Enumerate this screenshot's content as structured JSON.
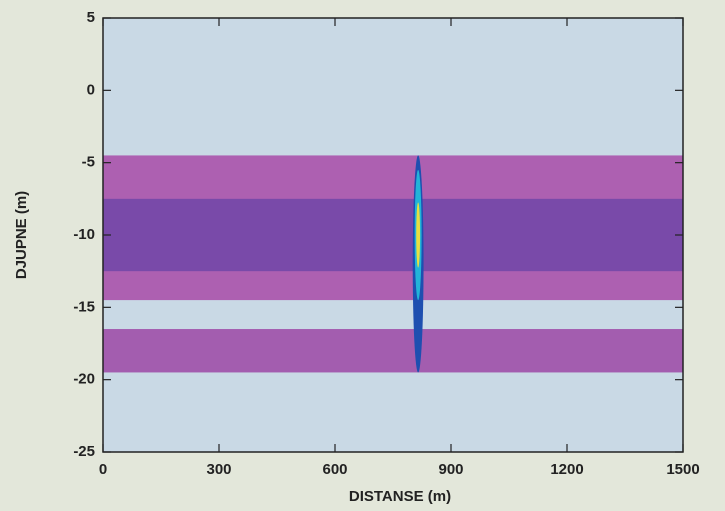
{
  "chart_data": {
    "type": "echogram",
    "xlabel": "DISTANSE (m)",
    "ylabel": "DJUPNE (m)",
    "xlim": [
      0,
      1500
    ],
    "xticks": [
      0,
      300,
      600,
      900,
      1200,
      1500
    ],
    "ylim": [
      -25,
      5
    ],
    "yticks": [
      5,
      0,
      -5,
      -10,
      -15,
      -20,
      -25
    ],
    "background": "#c9d9e5",
    "bands": [
      {
        "xlim": [
          0,
          1500
        ],
        "ylim": [
          -4.5,
          -14.5
        ],
        "color": "#a84aa8"
      },
      {
        "xlim": [
          0,
          1500
        ],
        "ylim": [
          -7.5,
          -12.5
        ],
        "color": "#7046a8"
      },
      {
        "xlim": [
          0,
          1500
        ],
        "ylim": [
          -16.5,
          -19.5
        ],
        "color": "#9c46a6"
      }
    ],
    "targets": [
      {
        "x": 815,
        "y": -12,
        "width": 28,
        "height": 15,
        "color": "#1e4fb0"
      },
      {
        "x": 815,
        "y": -10,
        "width": 18,
        "height": 9,
        "color": "#22b4d8"
      },
      {
        "x": 815,
        "y": -10,
        "width": 10,
        "height": 4.5,
        "color": "#e8e040"
      }
    ]
  }
}
